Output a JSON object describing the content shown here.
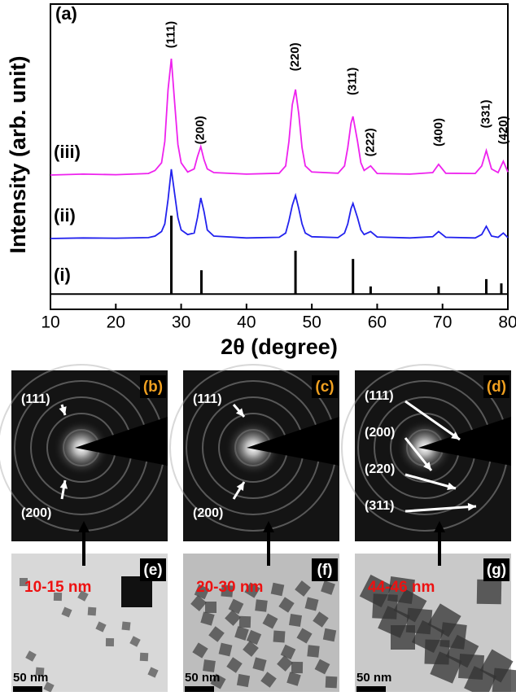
{
  "panel_label": "(a)",
  "chart_data": {
    "type": "line",
    "xlabel": "2θ (degree)",
    "ylabel": "Intensity (arb. unit)",
    "xlim": [
      10,
      80
    ],
    "xticks": [
      10,
      20,
      30,
      40,
      50,
      60,
      70,
      80
    ],
    "ylim": [
      0,
      100
    ],
    "series": [
      {
        "name": "(i)",
        "color": "#000000",
        "sticks": true,
        "base": 5,
        "x": [
          28.5,
          33.1,
          47.5,
          56.3,
          59.0,
          69.4,
          76.7,
          79.0
        ],
        "values": [
          30.7,
          12.8,
          19.2,
          16.5,
          7.5,
          7.5,
          9.9,
          8.5
        ]
      },
      {
        "name": "(ii)",
        "color": "#2222ee",
        "x": [
          10,
          15,
          20,
          25,
          26,
          27,
          27.5,
          28,
          28.5,
          29,
          29.5,
          30,
          31,
          32,
          32.5,
          33,
          33.5,
          34,
          35,
          40,
          45,
          46,
          46.5,
          47,
          47.5,
          48,
          48.5,
          49,
          50,
          54,
          55,
          55.5,
          56,
          56.3,
          57,
          57.5,
          58,
          59,
          60,
          65,
          68.5,
          69.4,
          70.5,
          75,
          76,
          76.7,
          77.5,
          78.5,
          79.3,
          80
        ],
        "values": [
          23.2,
          23.4,
          23.3,
          23.5,
          24,
          25.5,
          28,
          36,
          45.9,
          38,
          30,
          26,
          24.5,
          25,
          30,
          36.5,
          32,
          26,
          24,
          23.4,
          23.6,
          25,
          29,
          34,
          37.3,
          33,
          28,
          25,
          23.8,
          23.5,
          25,
          28,
          33,
          34.7,
          30,
          26,
          24.5,
          25.5,
          23.7,
          23.4,
          23.8,
          25.5,
          23.6,
          23.4,
          24.5,
          27.2,
          24,
          23.6,
          25,
          23.5
        ]
      },
      {
        "name": "(iii)",
        "color": "#ee22ee",
        "x": [
          10,
          15,
          20,
          25,
          26,
          27,
          27.5,
          28,
          28.5,
          29,
          29.5,
          30,
          31,
          32,
          32.5,
          33,
          33.5,
          34,
          35,
          40,
          45,
          46,
          46.5,
          47,
          47.5,
          48,
          48.5,
          49,
          50,
          54,
          55,
          55.5,
          56,
          56.3,
          57,
          57.5,
          58,
          59,
          60,
          65,
          68.5,
          69.4,
          70.5,
          75,
          76,
          76.7,
          77.5,
          78.5,
          79.3,
          80
        ],
        "values": [
          44,
          44.3,
          44.1,
          44.5,
          45.5,
          48,
          55,
          72,
          82.1,
          68,
          54,
          48,
          45,
          46,
          50,
          53.3,
          49,
          46,
          44.8,
          44.3,
          44.6,
          47,
          55,
          67,
          72,
          64,
          53,
          47,
          45,
          44.6,
          47,
          53,
          61,
          63.2,
          55,
          48,
          45.5,
          47,
          44.5,
          44.3,
          44.8,
          47.5,
          44.6,
          44.5,
          47,
          52,
          46,
          44.8,
          48.5,
          45
        ]
      }
    ],
    "annotations": [
      {
        "text": "(111)",
        "x": 28.5,
        "y": 90
      },
      {
        "text": "(200)",
        "x": 33,
        "y": 58.7
      },
      {
        "text": "(220)",
        "x": 47.5,
        "y": 82.7
      },
      {
        "text": "(311)",
        "x": 56.3,
        "y": 74.7
      },
      {
        "text": "(222)",
        "x": 59,
        "y": 54.7
      },
      {
        "text": "(400)",
        "x": 69.5,
        "y": 58
      },
      {
        "text": "(331)",
        "x": 76.7,
        "y": 64
      },
      {
        "text": "(420)",
        "x": 79.4,
        "y": 58.7
      }
    ]
  },
  "saed": [
    {
      "label": "(b)",
      "rings": [
        "(111)",
        "(200)"
      ]
    },
    {
      "label": "(c)",
      "rings": [
        "(111)",
        "(200)"
      ]
    },
    {
      "label": "(d)",
      "rings": [
        "(111)",
        "(200)",
        "(220)",
        "(311)"
      ]
    }
  ],
  "tem": [
    {
      "label": "(e)",
      "size": "10-15 nm",
      "scale": "50 nm"
    },
    {
      "label": "(f)",
      "size": "20-30 nm",
      "scale": "50 nm"
    },
    {
      "label": "(g)",
      "size": "44-46 nm",
      "scale": "50 nm"
    }
  ]
}
